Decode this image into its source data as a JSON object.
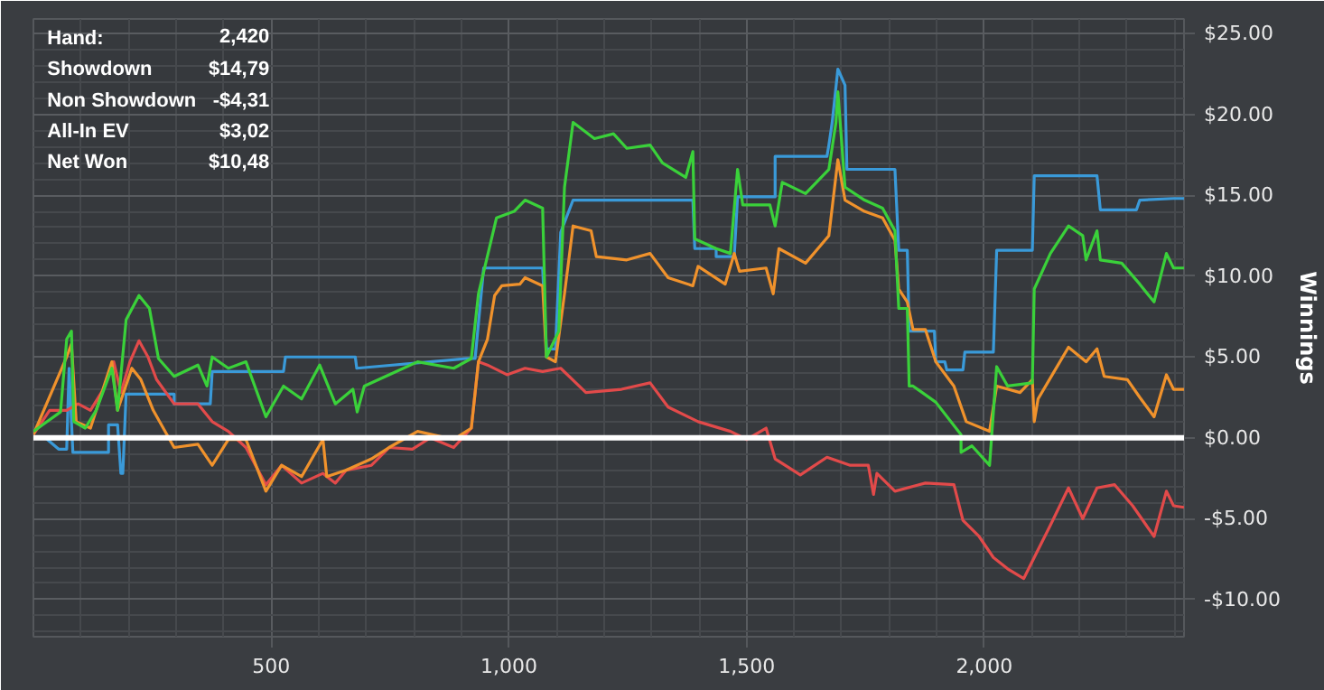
{
  "chart_data": {
    "type": "line",
    "ylabel": "Winnings",
    "annotations": [
      "Hand:",
      "2,420",
      "Showdown",
      "$14,79",
      "Non Showdown",
      "-$4,31",
      "All-In EV",
      "$3,02",
      "Net Won",
      "$10,48"
    ],
    "xlim": [
      0,
      2420
    ],
    "ylim": [
      -12.3,
      25.9
    ],
    "xticks": [
      500,
      {
        "value": 1000,
        "label": "1,000"
      },
      {
        "value": 1500,
        "label": "1,500"
      },
      {
        "value": 2000,
        "label": "2,000"
      }
    ],
    "yticks": [
      {
        "value": -10,
        "label": "-$10.00"
      },
      {
        "value": -5,
        "label": "-$5.00"
      },
      {
        "value": 0,
        "label": "$0.00"
      },
      {
        "value": 5,
        "label": "$5.00"
      },
      {
        "value": 10,
        "label": "$10.00"
      },
      {
        "value": 15,
        "label": "$15.00"
      },
      {
        "value": 20,
        "label": "$20.00"
      },
      {
        "value": 25,
        "label": "$25.00"
      }
    ],
    "grid": true,
    "ref_lines": [
      {
        "axis": "y",
        "value": 0,
        "color": "#ffffff"
      }
    ],
    "series": [
      {
        "color": "#3a9ad9",
        "x": [
          0,
          25,
          53,
          70,
          75,
          83,
          158,
          158,
          177,
          184,
          188,
          195,
          296,
          296,
          372,
          376,
          526,
          530,
          677,
          680,
          910,
          929,
          947,
          977,
          1071,
          1079,
          1098,
          1109,
          1135,
          1180,
          1387,
          1391,
          1436,
          1436,
          1474,
          1481,
          1560,
          1560,
          1669,
          1673,
          1680,
          1692,
          1707,
          1711,
          1812,
          1820,
          1838,
          1842,
          1895,
          1898,
          1917,
          1921,
          1955,
          1959,
          2019,
          2026,
          2101,
          2105,
          2237,
          2244,
          2320,
          2327,
          2398,
          2420
        ],
        "values": [
          0,
          0,
          -0.7,
          -0.7,
          4.3,
          -0.9,
          -0.9,
          0.8,
          0.8,
          -2.2,
          -2.2,
          2.7,
          2.7,
          2.1,
          2.1,
          4.1,
          4.1,
          5.0,
          5.0,
          4.3,
          4.9,
          4.9,
          10.5,
          10.5,
          10.5,
          5.5,
          5.5,
          12.7,
          14.7,
          14.7,
          14.7,
          11.7,
          11.7,
          11.2,
          11.2,
          14.9,
          14.9,
          17.4,
          17.4,
          18.1,
          19.5,
          22.8,
          21.8,
          16.6,
          16.6,
          11.6,
          11.6,
          6.6,
          6.6,
          4.7,
          4.7,
          4.2,
          4.2,
          5.3,
          5.3,
          11.6,
          11.6,
          16.2,
          16.2,
          14.1,
          14.1,
          14.7,
          14.8,
          14.8
        ]
      },
      {
        "color": "#e24a4a",
        "x": [
          0,
          34,
          70,
          94,
          120,
          147,
          169,
          184,
          203,
          222,
          241,
          259,
          296,
          346,
          376,
          410,
          447,
          489,
          522,
          564,
          609,
          635,
          658,
          711,
          748,
          797,
          835,
          884,
          921,
          936,
          955,
          996,
          1034,
          1071,
          1109,
          1162,
          1237,
          1297,
          1335,
          1398,
          1466,
          1500,
          1541,
          1560,
          1613,
          1669,
          1718,
          1756,
          1767,
          1774,
          1812,
          1876,
          1936,
          1955,
          1989,
          2019,
          2049,
          2083,
          2105,
          2139,
          2177,
          2207,
          2237,
          2274,
          2312,
          2357,
          2383,
          2398,
          2420
        ],
        "values": [
          0.2,
          1.7,
          1.7,
          2.1,
          1.7,
          3.0,
          4.7,
          2.8,
          4.7,
          6.0,
          5.0,
          3.6,
          2.1,
          2.1,
          1.0,
          0.4,
          -0.6,
          -2.9,
          -1.7,
          -2.8,
          -2.2,
          -2.8,
          -2.0,
          -1.7,
          -0.6,
          -0.7,
          0,
          -0.6,
          0.6,
          4.7,
          4.5,
          3.9,
          4.3,
          4.1,
          4.3,
          2.8,
          3.0,
          3.4,
          1.9,
          1.0,
          0.4,
          -0.1,
          0.6,
          -1.3,
          -2.3,
          -1.2,
          -1.7,
          -1.7,
          -3.5,
          -2.2,
          -3.3,
          -2.8,
          -2.9,
          -5.1,
          -6.1,
          -7.4,
          -8.1,
          -8.7,
          -7.4,
          -5.4,
          -3.1,
          -5.0,
          -3.1,
          -2.9,
          -4.2,
          -6.1,
          -3.3,
          -4.2,
          -4.3
        ]
      },
      {
        "color": "#f0922c",
        "x": [
          0,
          70,
          80,
          90,
          120,
          165,
          177,
          207,
          226,
          252,
          296,
          346,
          376,
          410,
          447,
          489,
          522,
          564,
          609,
          617,
          658,
          711,
          748,
          808,
          884,
          921,
          936,
          955,
          970,
          985,
          1023,
          1034,
          1071,
          1079,
          1098,
          1117,
          1135,
          1173,
          1184,
          1248,
          1297,
          1335,
          1387,
          1398,
          1455,
          1474,
          1485,
          1541,
          1556,
          1568,
          1624,
          1673,
          1692,
          1707,
          1748,
          1786,
          1812,
          1820,
          1838,
          1850,
          1876,
          1898,
          1936,
          1962,
          2011,
          2026,
          2075,
          2101,
          2105,
          2113,
          2143,
          2177,
          2214,
          2237,
          2252,
          2301,
          2327,
          2357,
          2383,
          2398,
          2420
        ],
        "values": [
          0.2,
          5.0,
          5.8,
          1.0,
          0.6,
          4.7,
          1.7,
          4.3,
          3.6,
          1.7,
          -0.6,
          -0.4,
          -1.7,
          -0.1,
          -0.1,
          -3.3,
          -1.7,
          -2.4,
          -0.1,
          -2.4,
          -2.0,
          -1.3,
          -0.6,
          0.4,
          -0.1,
          0.6,
          4.7,
          6.1,
          8.8,
          9.4,
          9.5,
          9.9,
          9.4,
          5.0,
          4.7,
          8.9,
          13.1,
          12.8,
          11.2,
          11.0,
          11.4,
          9.9,
          9.4,
          10.6,
          9.5,
          11.4,
          10.3,
          10.5,
          8.9,
          11.7,
          10.8,
          12.5,
          17.2,
          14.7,
          14.0,
          13.6,
          12.2,
          9.2,
          8.4,
          6.7,
          6.7,
          4.7,
          3.2,
          1.0,
          0.4,
          3.2,
          2.8,
          3.6,
          1.0,
          2.4,
          3.9,
          5.6,
          4.7,
          5.5,
          3.8,
          3.6,
          2.5,
          1.3,
          3.9,
          3.0,
          3.0
        ]
      },
      {
        "color": "#3ad13a",
        "x": [
          0,
          19,
          57,
          70,
          80,
          85,
          109,
          132,
          165,
          177,
          195,
          222,
          244,
          263,
          296,
          346,
          365,
          376,
          410,
          447,
          489,
          526,
          564,
          602,
          635,
          672,
          681,
          696,
          748,
          808,
          884,
          921,
          936,
          974,
          1011,
          1034,
          1071,
          1079,
          1105,
          1117,
          1135,
          1180,
          1220,
          1248,
          1297,
          1323,
          1372,
          1387,
          1391,
          1436,
          1466,
          1481,
          1492,
          1549,
          1560,
          1575,
          1624,
          1673,
          1688,
          1692,
          1707,
          1748,
          1786,
          1812,
          1820,
          1838,
          1842,
          1850,
          1898,
          1951,
          1951,
          1974,
          2011,
          2026,
          2049,
          2101,
          2105,
          2139,
          2177,
          2207,
          2214,
          2237,
          2244,
          2289,
          2327,
          2357,
          2383,
          2398,
          2420
        ],
        "values": [
          0.4,
          0.8,
          1.6,
          6.1,
          6.6,
          1.0,
          0.6,
          1.7,
          4.3,
          1.7,
          7.3,
          8.8,
          8.0,
          4.9,
          3.8,
          4.5,
          3.2,
          5.0,
          4.3,
          4.7,
          1.3,
          3.2,
          2.4,
          4.5,
          2.1,
          3.0,
          1.6,
          3.2,
          3.9,
          4.7,
          4.3,
          4.9,
          8.9,
          13.6,
          14.0,
          14.7,
          14.2,
          5.0,
          6.6,
          15.5,
          19.5,
          18.5,
          18.8,
          17.9,
          18.1,
          17.0,
          16.1,
          17.7,
          12.3,
          11.7,
          11.4,
          16.6,
          14.4,
          14.4,
          13.1,
          15.8,
          15.1,
          16.6,
          19.5,
          21.4,
          15.5,
          14.7,
          14.2,
          12.8,
          8.0,
          8.0,
          3.2,
          3.2,
          2.2,
          0.2,
          -0.9,
          -0.5,
          -1.7,
          4.4,
          3.2,
          3.4,
          9.2,
          11.4,
          13.1,
          12.5,
          11.0,
          12.8,
          11.0,
          10.8,
          9.5,
          8.4,
          11.4,
          10.5,
          10.5
        ]
      }
    ]
  }
}
